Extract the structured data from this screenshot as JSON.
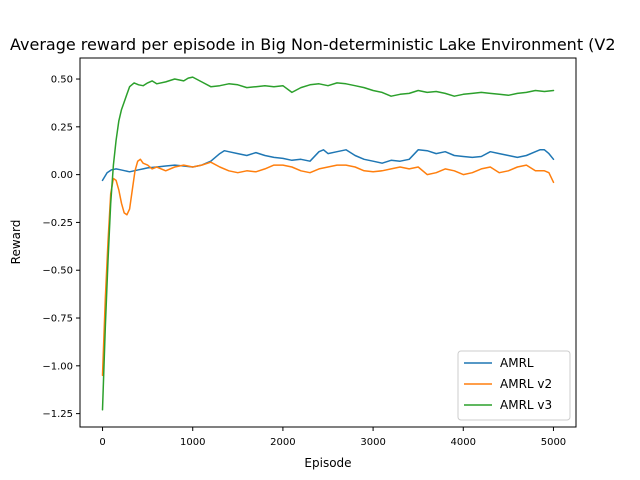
{
  "chart_data": {
    "type": "line",
    "title": "Average reward per episode in Big Non-deterministic Lake Environment (V2",
    "xlabel": "Episode",
    "ylabel": "Reward",
    "xlim": [
      -250,
      5250
    ],
    "ylim": [
      -1.32,
      0.61
    ],
    "xticks": [
      0,
      1000,
      2000,
      3000,
      4000,
      5000
    ],
    "xtick_labels": [
      "0",
      "1000",
      "2000",
      "3000",
      "4000",
      "5000"
    ],
    "yticks": [
      0.5,
      0.25,
      0.0,
      -0.25,
      -0.5,
      -0.75,
      -1.0,
      -1.25
    ],
    "ytick_labels": [
      "0.50",
      "0.25",
      "0.00",
      "−0.25",
      "−0.50",
      "−0.75",
      "−1.00",
      "−1.25"
    ],
    "grid": false,
    "legend_position": "lower right",
    "series": [
      {
        "name": "AMRL",
        "color": "#1f77b4",
        "x": [
          0,
          50,
          100,
          150,
          200,
          250,
          300,
          350,
          400,
          450,
          500,
          600,
          700,
          800,
          900,
          1000,
          1100,
          1200,
          1300,
          1350,
          1400,
          1500,
          1600,
          1700,
          1800,
          1900,
          2000,
          2100,
          2200,
          2300,
          2400,
          2450,
          2500,
          2600,
          2700,
          2800,
          2900,
          3000,
          3100,
          3200,
          3300,
          3400,
          3500,
          3600,
          3700,
          3800,
          3900,
          4000,
          4100,
          4200,
          4300,
          4400,
          4500,
          4600,
          4700,
          4800,
          4850,
          4900,
          4950,
          5000
        ],
        "y": [
          -0.03,
          0.01,
          0.025,
          0.03,
          0.025,
          0.02,
          0.015,
          0.02,
          0.025,
          0.03,
          0.035,
          0.04,
          0.045,
          0.05,
          0.045,
          0.04,
          0.05,
          0.07,
          0.11,
          0.125,
          0.12,
          0.11,
          0.1,
          0.115,
          0.1,
          0.09,
          0.085,
          0.075,
          0.08,
          0.07,
          0.12,
          0.13,
          0.11,
          0.12,
          0.13,
          0.1,
          0.08,
          0.07,
          0.06,
          0.075,
          0.07,
          0.08,
          0.13,
          0.125,
          0.11,
          0.12,
          0.1,
          0.095,
          0.09,
          0.095,
          0.12,
          0.11,
          0.1,
          0.09,
          0.1,
          0.12,
          0.13,
          0.13,
          0.11,
          0.08
        ]
      },
      {
        "name": "AMRL v2",
        "color": "#ff7f0e",
        "x": [
          0,
          30,
          60,
          90,
          120,
          150,
          180,
          210,
          240,
          270,
          300,
          330,
          360,
          390,
          420,
          450,
          500,
          550,
          600,
          700,
          800,
          900,
          1000,
          1100,
          1200,
          1300,
          1400,
          1500,
          1600,
          1700,
          1800,
          1900,
          2000,
          2100,
          2200,
          2300,
          2400,
          2500,
          2600,
          2700,
          2800,
          2900,
          3000,
          3100,
          3200,
          3300,
          3400,
          3500,
          3600,
          3700,
          3800,
          3900,
          4000,
          4100,
          4200,
          4300,
          4400,
          4500,
          4600,
          4700,
          4800,
          4900,
          4950,
          5000
        ],
        "y": [
          -1.05,
          -0.65,
          -0.35,
          -0.1,
          -0.02,
          -0.03,
          -0.08,
          -0.15,
          -0.2,
          -0.21,
          -0.18,
          -0.08,
          0.02,
          0.07,
          0.08,
          0.06,
          0.05,
          0.03,
          0.04,
          0.02,
          0.04,
          0.05,
          0.04,
          0.05,
          0.065,
          0.04,
          0.02,
          0.01,
          0.02,
          0.015,
          0.03,
          0.05,
          0.05,
          0.04,
          0.02,
          0.01,
          0.03,
          0.04,
          0.05,
          0.05,
          0.04,
          0.02,
          0.015,
          0.02,
          0.03,
          0.04,
          0.03,
          0.04,
          0.0,
          0.01,
          0.03,
          0.02,
          0.0,
          0.01,
          0.03,
          0.04,
          0.01,
          0.02,
          0.04,
          0.05,
          0.02,
          0.02,
          0.01,
          -0.04
        ]
      },
      {
        "name": "AMRL v3",
        "color": "#2ca02c",
        "x": [
          0,
          30,
          60,
          90,
          120,
          150,
          180,
          210,
          240,
          270,
          300,
          350,
          400,
          450,
          500,
          550,
          600,
          700,
          800,
          900,
          950,
          1000,
          1100,
          1200,
          1300,
          1400,
          1500,
          1600,
          1700,
          1800,
          1900,
          2000,
          2100,
          2200,
          2300,
          2400,
          2500,
          2600,
          2700,
          2800,
          2900,
          3000,
          3100,
          3200,
          3300,
          3400,
          3500,
          3600,
          3700,
          3800,
          3900,
          4000,
          4100,
          4200,
          4300,
          4400,
          4500,
          4600,
          4700,
          4800,
          4900,
          5000
        ],
        "y": [
          -1.23,
          -0.8,
          -0.45,
          -0.15,
          0.05,
          0.18,
          0.28,
          0.34,
          0.38,
          0.42,
          0.46,
          0.48,
          0.47,
          0.465,
          0.48,
          0.49,
          0.475,
          0.485,
          0.5,
          0.49,
          0.505,
          0.51,
          0.485,
          0.46,
          0.465,
          0.475,
          0.47,
          0.455,
          0.46,
          0.465,
          0.46,
          0.465,
          0.43,
          0.455,
          0.47,
          0.475,
          0.465,
          0.48,
          0.475,
          0.465,
          0.455,
          0.44,
          0.43,
          0.41,
          0.42,
          0.425,
          0.44,
          0.43,
          0.435,
          0.425,
          0.41,
          0.42,
          0.425,
          0.43,
          0.425,
          0.42,
          0.415,
          0.425,
          0.43,
          0.44,
          0.435,
          0.44
        ]
      }
    ]
  }
}
